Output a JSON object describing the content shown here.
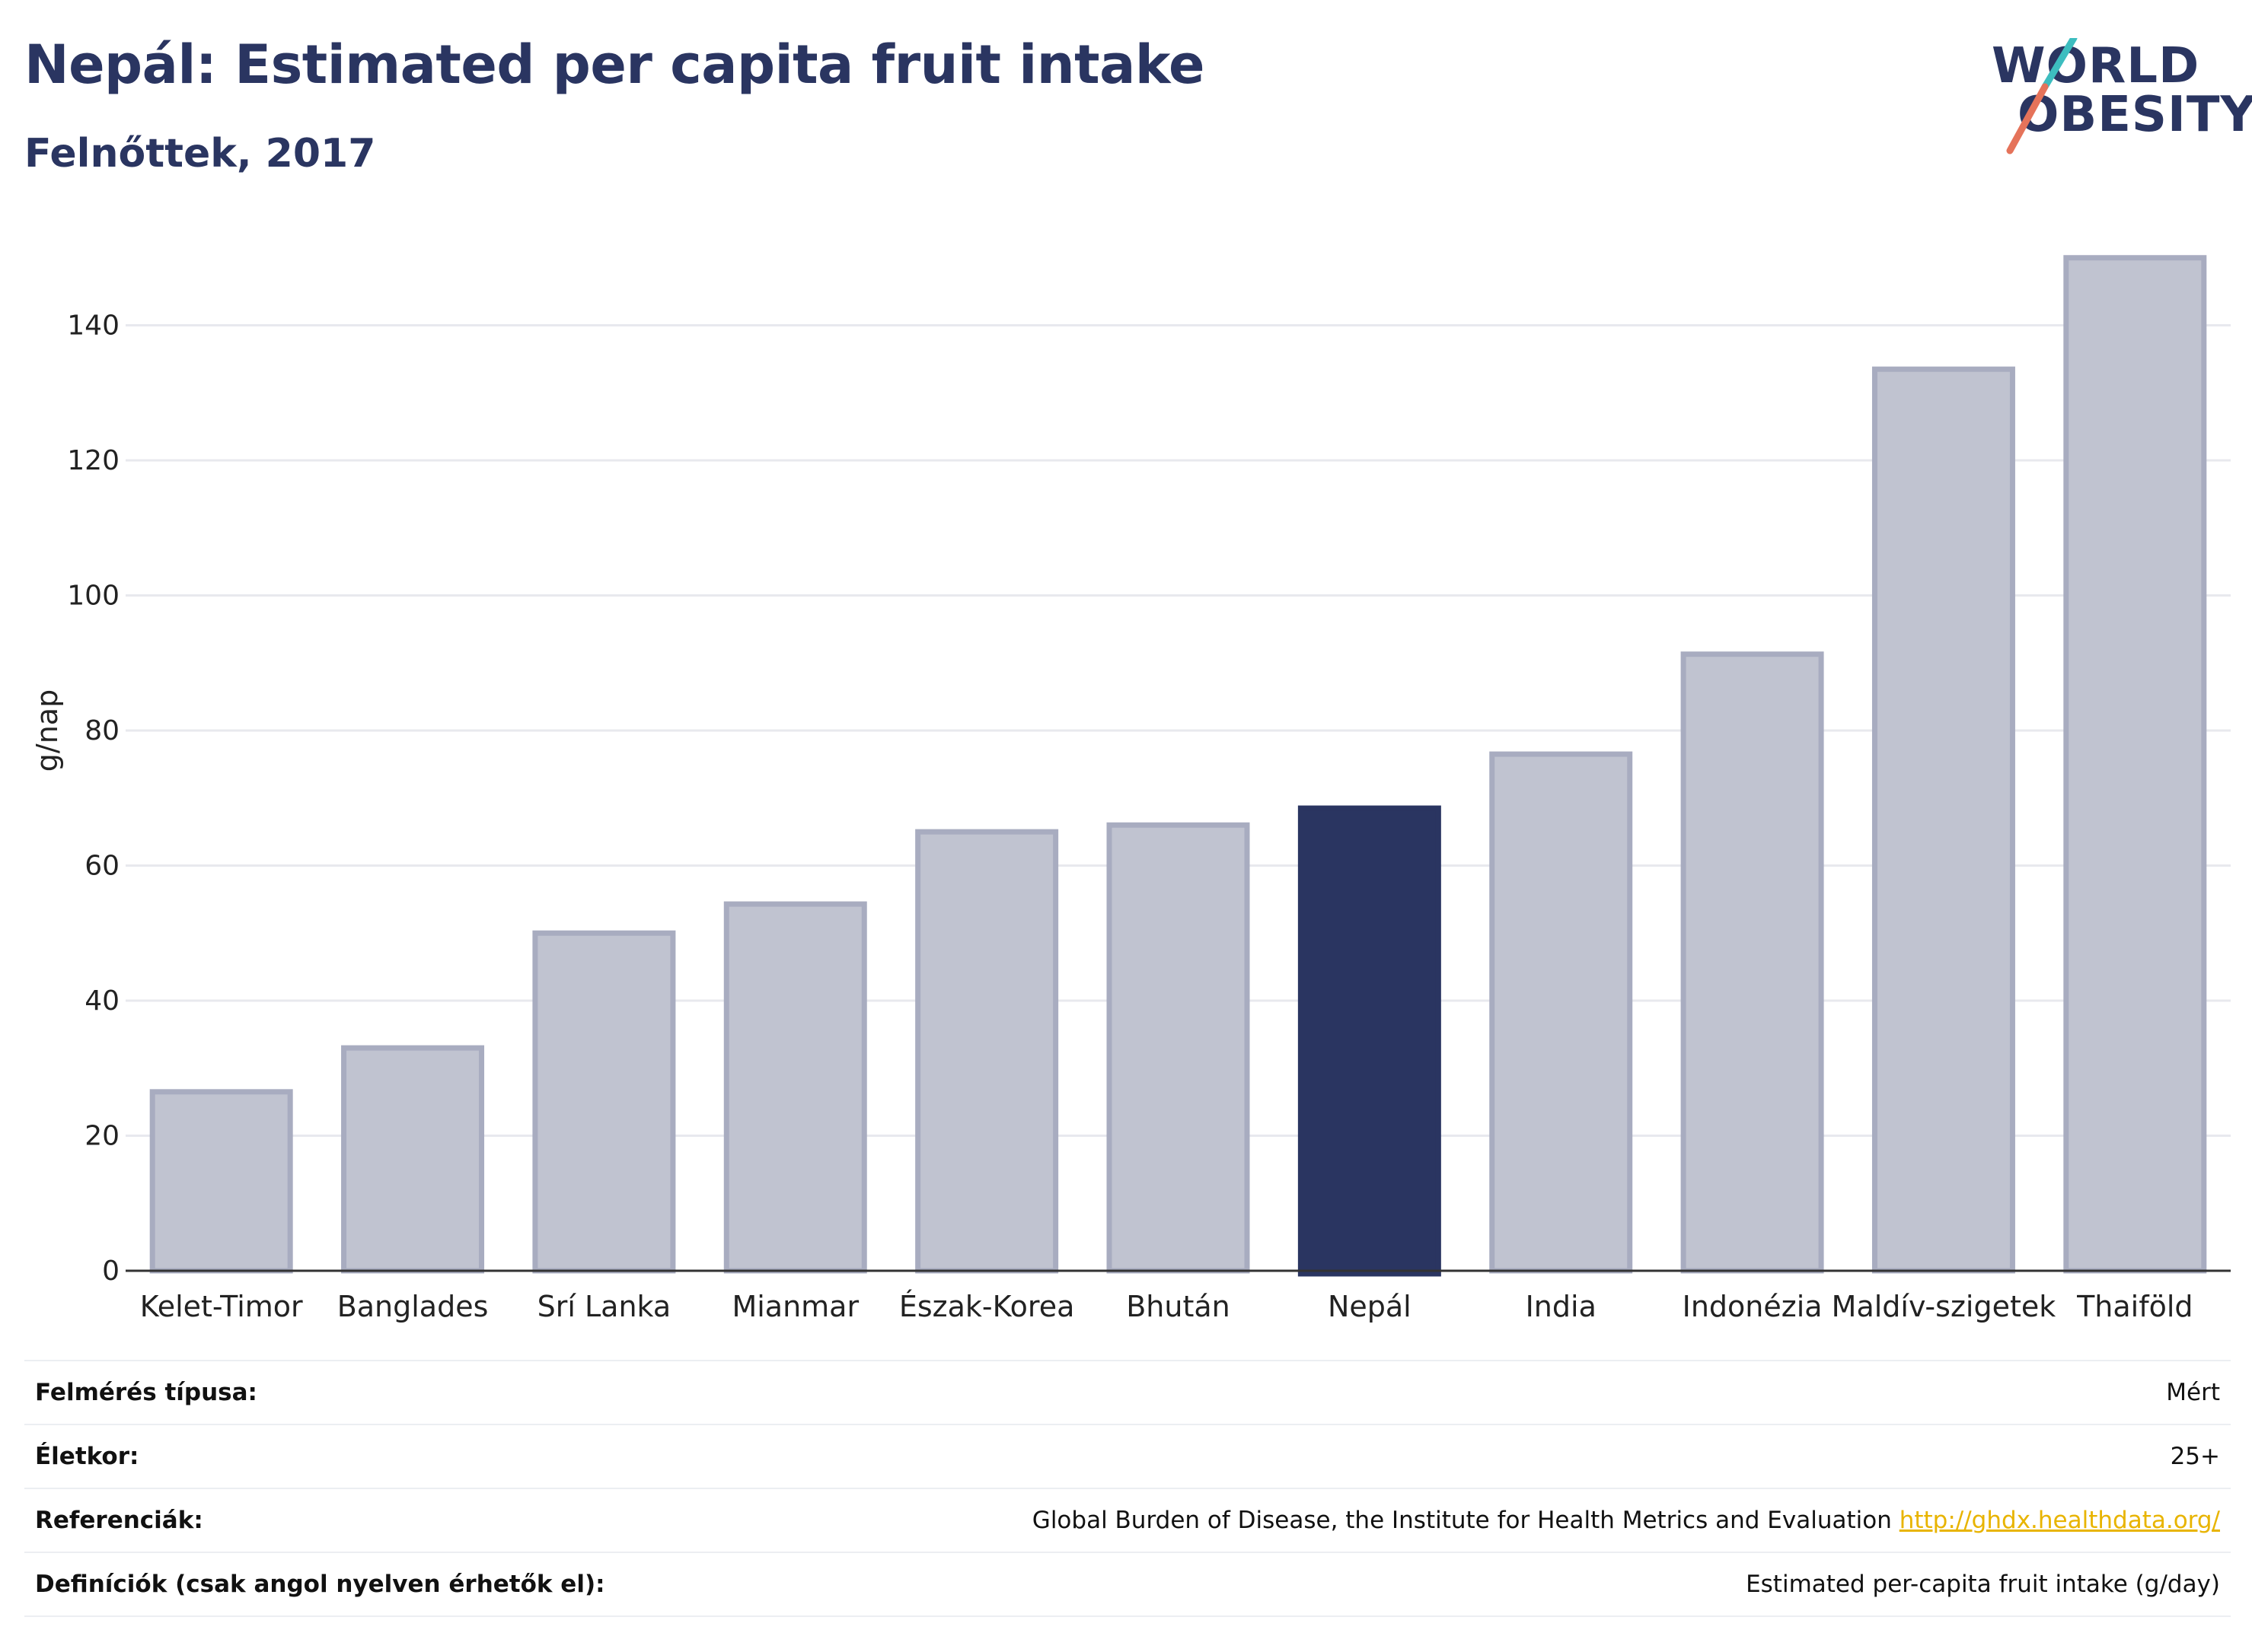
{
  "header": {
    "title": "Nepál: Estimated per capita fruit intake",
    "subtitle": "Felnőttek, 2017"
  },
  "logo": {
    "line1": "WORLD",
    "line2": "OBESITY",
    "colors": {
      "text": "#2a3561",
      "slash_top": "#3dbdbf",
      "slash_bottom": "#e5735a"
    }
  },
  "chart_data": {
    "type": "bar",
    "categories": [
      "Kelet-Timor",
      "Banglades",
      "Srí Lanka",
      "Mianmar",
      "Észak-Korea",
      "Bhután",
      "Nepál",
      "India",
      "Indonézia",
      "Maldív-szigetek",
      "Thaiföld"
    ],
    "values": [
      26.5,
      33,
      50,
      54.3,
      65,
      66,
      68.5,
      76.5,
      91.3,
      133.5,
      150
    ],
    "highlight": "Nepál",
    "ylabel": "g/nap",
    "xlabel": "",
    "ylim": [
      0,
      150
    ],
    "yticks": [
      0,
      20,
      40,
      60,
      80,
      100,
      120,
      140
    ],
    "grid": true,
    "colors": {
      "bar": "#c0c3d0",
      "bar_edge": "#a8acc0",
      "highlight": "#2a3561",
      "grid": "#e8e9ee",
      "axis": "#333333"
    }
  },
  "info_table": [
    {
      "key": "Felmérés típusa:",
      "value": "Mért"
    },
    {
      "key": "Életkor:",
      "value": "25+"
    },
    {
      "key": "Referenciák:",
      "value": "Global Burden of Disease, the Institute for Health Metrics and Evaluation",
      "link": "http://ghdx.healthdata.org/"
    },
    {
      "key": "Definíciók (csak angol nyelven érhetők el):",
      "value": "Estimated per-capita fruit intake (g/day)"
    }
  ]
}
